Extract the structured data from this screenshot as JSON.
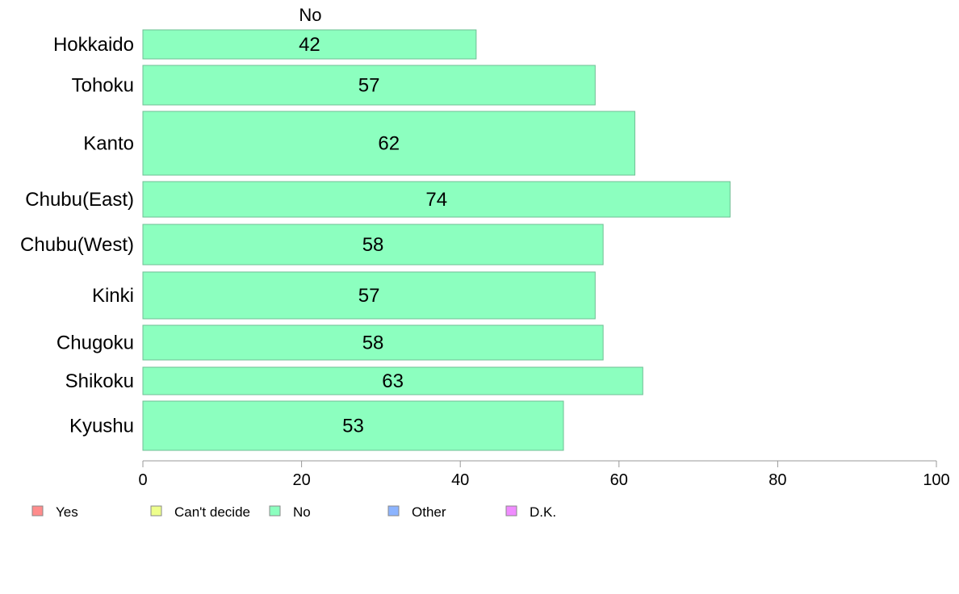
{
  "chart_data": {
    "type": "bar",
    "orientation": "horizontal",
    "column_header": "No",
    "categories": [
      "Hokkaido",
      "Tohoku",
      "Kanto",
      "Chubu(East)",
      "Chubu(West)",
      "Kinki",
      "Chugoku",
      "Shikoku",
      "Kyushu"
    ],
    "series": [
      {
        "name": "No",
        "values": [
          42,
          57,
          62,
          74,
          58,
          57,
          58,
          63,
          53
        ],
        "value_labels": [
          "42",
          "57",
          "62",
          "74",
          "58",
          "57",
          "58",
          "63",
          "53"
        ]
      }
    ],
    "xlim": [
      0,
      100
    ],
    "xticks": [
      "0",
      "20",
      "40",
      "60",
      "80",
      "100"
    ],
    "grid": false,
    "legend": {
      "placement": "bottom-left",
      "items": [
        {
          "label": "Yes",
          "color": "#ff8c8c"
        },
        {
          "label": "Can't decide",
          "color": "#eeff8c"
        },
        {
          "label": "No",
          "color": "#8cffbf"
        },
        {
          "label": "Other",
          "color": "#8cb4ff"
        },
        {
          "label": "D.K.",
          "color": "#f08cff"
        }
      ]
    },
    "colors": {
      "bar": "#8cffbf",
      "bar_stroke": "#6fbf94",
      "axis": "#999999"
    }
  }
}
